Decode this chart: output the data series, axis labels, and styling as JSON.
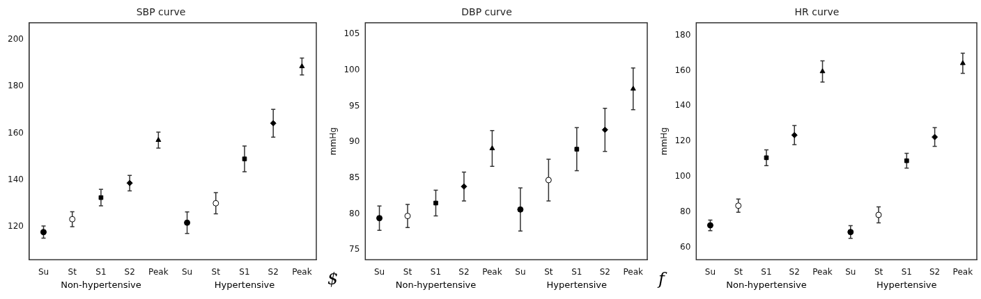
{
  "chart_data": [
    {
      "type": "scatter",
      "title": "SBP curve",
      "categories": [
        "Su",
        "St",
        "S1",
        "S2",
        "Peak",
        "Su",
        "St",
        "S1",
        "S2",
        "Peak"
      ],
      "ylim": [
        106,
        207
      ],
      "yticks": [
        120,
        140,
        160,
        180,
        200
      ],
      "grid": false,
      "legend": false,
      "annotations": [
        "Non-hypertensive",
        "Hypertensive"
      ],
      "series": [
        {
          "color": "#000000",
          "marker": "circle",
          "values": [
            117.8,
            null,
            null,
            null,
            null,
            121.8,
            null,
            null,
            null,
            null
          ],
          "errors": [
            2.6,
            null,
            null,
            null,
            null,
            4.6,
            null,
            null,
            null,
            null
          ]
        },
        {
          "color": "#ffffff",
          "marker": "circle",
          "values": [
            null,
            123.3,
            null,
            null,
            null,
            null,
            130.1,
            null,
            null,
            null
          ],
          "errors": [
            null,
            3.2,
            null,
            null,
            null,
            null,
            4.5,
            null,
            null,
            null
          ]
        },
        {
          "color": "#000000",
          "marker": "square",
          "values": [
            null,
            null,
            132.5,
            null,
            null,
            null,
            null,
            149.0,
            null,
            null
          ],
          "errors": [
            null,
            null,
            3.5,
            null,
            null,
            null,
            null,
            5.5,
            null,
            null
          ]
        },
        {
          "color": "#000000",
          "marker": "diamond",
          "values": [
            null,
            null,
            null,
            138.7,
            null,
            null,
            null,
            null,
            164.2,
            null
          ],
          "errors": [
            null,
            null,
            null,
            3.3,
            null,
            null,
            null,
            null,
            5.9,
            null
          ]
        },
        {
          "color": "#000000",
          "marker": "triangle",
          "values": [
            null,
            null,
            null,
            null,
            157.0,
            null,
            null,
            null,
            null,
            188.4
          ],
          "errors": [
            null,
            null,
            null,
            null,
            3.4,
            null,
            null,
            null,
            null,
            3.6
          ]
        }
      ]
    },
    {
      "type": "scatter",
      "title": "DBP curve",
      "ylabel": "mmHg",
      "categories": [
        "Su",
        "St",
        "S1",
        "S2",
        "Peak",
        "Su",
        "St",
        "S1",
        "S2",
        "Peak"
      ],
      "ylim": [
        73.6,
        106.6
      ],
      "yticks": [
        75,
        80,
        85,
        90,
        95,
        100,
        105
      ],
      "grid": false,
      "legend": false,
      "annotations": [
        "Non-hypertensive",
        "Hypertensive",
        "$"
      ],
      "series": [
        {
          "color": "#000000",
          "marker": "circle",
          "values": [
            79.4,
            null,
            null,
            null,
            null,
            80.6,
            null,
            null,
            null,
            null
          ],
          "errors": [
            1.7,
            null,
            null,
            null,
            null,
            3.0,
            null,
            null,
            null,
            null
          ]
        },
        {
          "color": "#ffffff",
          "marker": "circle",
          "values": [
            null,
            79.7,
            null,
            null,
            null,
            null,
            84.7,
            null,
            null,
            null
          ],
          "errors": [
            null,
            1.6,
            null,
            null,
            null,
            null,
            2.9,
            null,
            null,
            null
          ]
        },
        {
          "color": "#000000",
          "marker": "square",
          "values": [
            null,
            null,
            81.5,
            null,
            null,
            null,
            null,
            89.0,
            null,
            null
          ],
          "errors": [
            null,
            null,
            1.8,
            null,
            null,
            null,
            null,
            3.0,
            null,
            null
          ]
        },
        {
          "color": "#000000",
          "marker": "diamond",
          "values": [
            null,
            null,
            null,
            83.8,
            null,
            null,
            null,
            null,
            91.7,
            null
          ],
          "errors": [
            null,
            null,
            null,
            2.0,
            null,
            null,
            null,
            null,
            3.0,
            null
          ]
        },
        {
          "color": "#000000",
          "marker": "triangle",
          "values": [
            null,
            null,
            null,
            null,
            89.1,
            null,
            null,
            null,
            null,
            97.4
          ],
          "errors": [
            null,
            null,
            null,
            null,
            2.5,
            null,
            null,
            null,
            null,
            2.9
          ]
        }
      ]
    },
    {
      "type": "scatter",
      "title": "HR curve",
      "ylabel": "mmHg",
      "categories": [
        "Su",
        "St",
        "S1",
        "S2",
        "Peak",
        "Su",
        "St",
        "S1",
        "S2",
        "Peak"
      ],
      "ylim": [
        53,
        187
      ],
      "yticks": [
        60,
        80,
        100,
        120,
        140,
        160,
        180
      ],
      "grid": false,
      "legend": false,
      "annotations": [
        "Non-hypertensive",
        "Hypertensive",
        "f"
      ],
      "series": [
        {
          "color": "#000000",
          "marker": "circle",
          "values": [
            72.5,
            null,
            null,
            null,
            null,
            68.7,
            null,
            null,
            null,
            null
          ],
          "errors": [
            3.0,
            null,
            null,
            null,
            null,
            3.6,
            null,
            null,
            null,
            null
          ]
        },
        {
          "color": "#ffffff",
          "marker": "circle",
          "values": [
            null,
            83.6,
            null,
            null,
            null,
            null,
            78.4,
            null,
            null,
            null
          ],
          "errors": [
            null,
            3.7,
            null,
            null,
            null,
            null,
            4.5,
            null,
            null,
            null
          ]
        },
        {
          "color": "#000000",
          "marker": "square",
          "values": [
            null,
            null,
            110.7,
            null,
            null,
            null,
            null,
            109.0,
            null,
            null
          ],
          "errors": [
            null,
            null,
            4.5,
            null,
            null,
            null,
            null,
            4.2,
            null,
            null
          ]
        },
        {
          "color": "#000000",
          "marker": "diamond",
          "values": [
            null,
            null,
            null,
            123.5,
            null,
            null,
            null,
            null,
            122.4,
            null
          ],
          "errors": [
            null,
            null,
            null,
            5.4,
            null,
            null,
            null,
            null,
            5.3,
            null
          ]
        },
        {
          "color": "#000000",
          "marker": "triangle",
          "values": [
            null,
            null,
            null,
            null,
            159.5,
            null,
            null,
            null,
            null,
            164.1
          ],
          "errors": [
            null,
            null,
            null,
            null,
            6.0,
            null,
            null,
            null,
            null,
            5.7
          ]
        }
      ]
    }
  ]
}
